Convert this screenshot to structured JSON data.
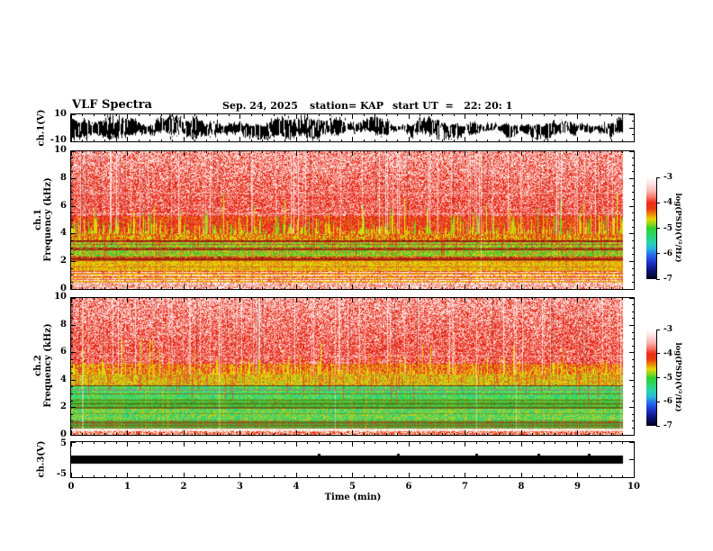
{
  "header": {
    "title": "VLF Spectra",
    "date": "Sep. 24, 2025",
    "station": "station= KAP",
    "start_ut": "start UT  =   22: 20: 1"
  },
  "x_axis": {
    "label": "Time (min)",
    "min": 0,
    "max": 10,
    "ticks": [
      "0",
      "1",
      "2",
      "3",
      "4",
      "5",
      "6",
      "7",
      "8",
      "9",
      "10"
    ],
    "minor_step_min": 0.2
  },
  "panels": {
    "wave": {
      "ylabel": "ch.1(V)",
      "ytick_labels": [
        "10",
        "-10"
      ],
      "ylim": [
        -10,
        10
      ]
    },
    "spec1": {
      "ylabel_line1": "ch.1",
      "ylabel_line2": "Frequency (kHz)",
      "yticks": [
        "10",
        "8",
        "6",
        "4",
        "2",
        "0"
      ],
      "ylim": [
        0,
        10
      ]
    },
    "spec2": {
      "ylabel_line1": "ch.2",
      "ylabel_line2": "Frequency (kHz)",
      "yticks": [
        "10",
        "8",
        "6",
        "4",
        "2",
        "0"
      ],
      "ylim": [
        0,
        10
      ]
    },
    "ch3": {
      "ylabel": "ch.3(V)",
      "ytick_labels": [
        "5",
        "-5"
      ],
      "ylim": [
        -5,
        5
      ]
    }
  },
  "colorbars": [
    {
      "label": "log(PSD)(V²/Hz)",
      "ticks": [
        "-3",
        "-4",
        "-5",
        "-6",
        "-7"
      ],
      "max": -3,
      "min": -7
    },
    {
      "label": "log(PSD)(V²/Hz)",
      "ticks": [
        "-3",
        "-4",
        "-5",
        "-6",
        "-7"
      ],
      "max": -3,
      "min": -7
    }
  ],
  "colors": {
    "frame": "#000000",
    "background": "#ffffff",
    "trace": "#000000",
    "colorbar_gradient": [
      [
        "0%",
        "#ffffff"
      ],
      [
        "7%",
        "#fddede"
      ],
      [
        "14%",
        "#fbb2ac"
      ],
      [
        "20%",
        "#f57262"
      ],
      [
        "25%",
        "#ef2b16"
      ],
      [
        "31%",
        "#e83c12"
      ],
      [
        "36%",
        "#ee8406"
      ],
      [
        "41%",
        "#e8d606"
      ],
      [
        "46%",
        "#8ed41c"
      ],
      [
        "50%",
        "#2ed22e"
      ],
      [
        "57%",
        "#2cd46a"
      ],
      [
        "64%",
        "#28d2ae"
      ],
      [
        "70%",
        "#2ab4dc"
      ],
      [
        "77%",
        "#2664ee"
      ],
      [
        "84%",
        "#1c30c4"
      ],
      [
        "92%",
        "#0a1270"
      ],
      [
        "100%",
        "#02021a"
      ]
    ]
  },
  "chart_data": [
    {
      "id": "ch1_waveform",
      "type": "line",
      "panel": "wave",
      "title": "ch.1 raw signal",
      "ylabel": "ch.1(V)",
      "ylim": [
        -10,
        10
      ],
      "xlim": [
        0,
        10
      ],
      "description": "Dense clipped broadband noise filling most of the ±10 V range continuously from 0 to ~9.8 min",
      "render": {
        "seed": 303,
        "data_fraction": 0.981,
        "hole_density": 0.9
      }
    },
    {
      "id": "ch1_spectrogram",
      "type": "heatmap",
      "panel": "spec1",
      "title": "ch.1 spectrogram",
      "ylabel": "Frequency (kHz)",
      "ylim": [
        0,
        10
      ],
      "xlim": [
        0,
        10
      ],
      "colorbar": {
        "label": "log(PSD)(V²/Hz)",
        "min": -7,
        "max": -3
      },
      "summary_bands": [
        {
          "f_khz": [
            5,
            10
          ],
          "psd": "-3.5 to -4, red/white speckle with impulsive vertical streaks"
        },
        {
          "f_khz": [
            4,
            5
          ],
          "psd": "-4, red with dense yellow-green sferic spikes rising from 4 kHz"
        },
        {
          "f_khz": [
            3.45,
            4
          ],
          "psd": "-4.5, yellow-orange band; dark red line at 3.5 kHz"
        },
        {
          "f_khz": [
            2.95,
            3.45
          ],
          "psd": "-5, green band crossed by red vertical streaks"
        },
        {
          "f_khz": [
            2.1,
            2.95
          ],
          "psd": "green/yellow mix; strong dark-red band near 2.2 kHz"
        },
        {
          "f_khz": [
            1.3,
            2.1
          ],
          "psd": "-4.5, yellow noisy band"
        },
        {
          "f_khz": [
            0.35,
            1.3
          ],
          "psd": "horizontal striped narrowband lines, white/red/yellow"
        },
        {
          "f_khz": [
            0,
            0.35
          ],
          "psd": "-3.5, light red"
        }
      ],
      "render": {
        "seed": 101,
        "fmax": 10,
        "data_fraction": 0.981,
        "topwhite_from": 6.5,
        "topwhite_amt": 0.5,
        "streak_zone": [
          4.0,
          10
        ],
        "streak_light_p": 0.1,
        "streak_dark_p": 0.05,
        "tall_streak_p": 0.006,
        "low_tint_p": 0.14,
        "low_tint_color": "#e04818",
        "bands": [
          {
            "f": [
              5.3,
              10.01
            ],
            "colors": [
              "#e62615",
              "#e62615",
              "#ee5142",
              "#f7948a",
              "#fbd2ca"
            ],
            "topwhite": true
          },
          {
            "f": [
              4.0,
              5.3
            ],
            "colors": [
              "#e62615",
              "#e62615",
              "#e83a22",
              "#ee5142",
              "#e8a00a"
            ]
          },
          {
            "f": [
              3.55,
              4.0
            ],
            "colors": [
              "#edc504",
              "#e8e00a",
              "#e65a20",
              "#a8d816",
              "#e62615"
            ]
          },
          {
            "f": [
              3.42,
              3.55
            ],
            "colors": [
              "#8f1d08",
              "#b03012",
              "#d44224"
            ]
          },
          {
            "f": [
              2.98,
              3.42
            ],
            "colors": [
              "#2fd02f",
              "#53de4a",
              "#bfe42c",
              "#e8d40e",
              "#e66a28"
            ]
          },
          {
            "f": [
              2.84,
              2.98
            ],
            "colors": [
              "#9c2410",
              "#c23818",
              "#7a9418"
            ]
          },
          {
            "f": [
              2.38,
              2.84
            ],
            "colors": [
              "#3ad03a",
              "#9ed826",
              "#e0d412",
              "#e67a24",
              "#2fd02f"
            ]
          },
          {
            "f": [
              2.08,
              2.38
            ],
            "colors": [
              "#d32410",
              "#9c1808",
              "#ee5038",
              "#c8b40a"
            ]
          },
          {
            "f": [
              1.28,
              2.08
            ],
            "colors": [
              "#ecd400",
              "#efac04",
              "#e66028",
              "#bcd81e",
              "#ecd400"
            ]
          },
          {
            "f": [
              0.38,
              1.28
            ],
            "colors": [
              "#e85040",
              "#f0d800"
            ],
            "hstripes": [
              "#ffffff",
              "#e85040",
              "#f0d800",
              "#f8b8a8",
              "#ffffff",
              "#e02818",
              "#ecd000",
              "#fae8e0",
              "#e85040",
              "#ffffff",
              "#e8c000",
              "#f09078",
              "#ffffff",
              "#d83020"
            ]
          },
          {
            "f": [
              -0.01,
              0.38
            ],
            "colors": [
              "#e85a40",
              "#f79a8a",
              "#ffffff",
              "#f2cfc6"
            ]
          }
        ],
        "spikes": {
          "base_f": 4.0,
          "up_p": 0.55,
          "up_mean": 0.55,
          "up_max": 3.0,
          "up_colors": [
            "#e8e00a",
            "#cede10",
            "#7fd01e",
            "#e8c004"
          ],
          "tip_color": "#58c818",
          "down_p": 0.28,
          "down_mean": 0.5,
          "down_max": 1.8,
          "down_color": "#e03418"
        },
        "hlines": [
          {
            "f": 7.0,
            "c": "#fbc6be",
            "a": 0.55
          },
          {
            "f": 5.5,
            "c": "#fbc6be",
            "a": 0.6
          },
          {
            "f": 3.5,
            "c": "#7a1505",
            "a": 0.85
          },
          {
            "f": 3.3,
            "c": "#9c2410",
            "a": 0.5
          },
          {
            "f": 2.9,
            "c": "#8c1d08",
            "a": 0.8
          },
          {
            "f": 2.22,
            "c": "#8c1808",
            "a": 0.8,
            "t": 2
          },
          {
            "f": 2.1,
            "c": "#a82a10",
            "a": 0.6
          },
          {
            "f": 1.62,
            "c": "#b03012",
            "a": 0.4
          }
        ]
      }
    },
    {
      "id": "ch2_spectrogram",
      "type": "heatmap",
      "panel": "spec2",
      "title": "ch.2 spectrogram",
      "ylabel": "Frequency (kHz)",
      "ylim": [
        0,
        10
      ],
      "xlim": [
        0,
        10
      ],
      "colorbar": {
        "label": "log(PSD)(V²/Hz)",
        "min": -7,
        "max": -3
      },
      "summary_bands": [
        {
          "f_khz": [
            5.2,
            10
          ],
          "psd": "-3.5 to -4, red/white speckle with vertical streaks"
        },
        {
          "f_khz": [
            4.4,
            5.2
          ],
          "psd": "-4, red with dense yellow sferic spikes"
        },
        {
          "f_khz": [
            3.6,
            4.4
          ],
          "psd": "-4.7, yellow-green transition band"
        },
        {
          "f_khz": [
            2.6,
            3.6
          ],
          "psd": "-5 to -5.5, green/teal band with dark horizontal lines"
        },
        {
          "f_khz": [
            1.95,
            2.6
          ],
          "psd": "green with dark olive lines near 2.0-2.3 kHz"
        },
        {
          "f_khz": [
            1.05,
            1.95
          ],
          "psd": "-5.3, green/cyan with yellow vertical streaks"
        },
        {
          "f_khz": [
            0.45,
            1.05
          ],
          "psd": "darker olive-green with red lines"
        },
        {
          "f_khz": [
            0,
            0.45
          ],
          "psd": "thin white line then orange/red speckle at bottom"
        }
      ],
      "render": {
        "seed": 202,
        "fmax": 10,
        "data_fraction": 0.981,
        "topwhite_from": 6.5,
        "topwhite_amt": 0.5,
        "streak_zone": [
          4.4,
          10
        ],
        "streak_light_p": 0.1,
        "streak_dark_p": 0.05,
        "tall_streak_p": 0.005,
        "low_tint_p": 0.12,
        "low_tint_color": "#e0c80a",
        "bands": [
          {
            "f": [
              5.2,
              10.01
            ],
            "colors": [
              "#e62615",
              "#e62615",
              "#ee5142",
              "#f7948a",
              "#fbd2ca"
            ],
            "topwhite": true
          },
          {
            "f": [
              4.4,
              5.2
            ],
            "colors": [
              "#e62615",
              "#e84428",
              "#ee5142",
              "#e8a00a",
              "#e0cc0a"
            ]
          },
          {
            "f": [
              3.6,
              4.4
            ],
            "colors": [
              "#cede1c",
              "#e8d80a",
              "#7ed22a",
              "#efa404",
              "#e65a20"
            ]
          },
          {
            "f": [
              2.6,
              3.6
            ],
            "colors": [
              "#2ed24e",
              "#28d896",
              "#44e050",
              "#b4e022",
              "#32c8c0",
              "#2ed24e"
            ]
          },
          {
            "f": [
              1.95,
              2.6
            ],
            "colors": [
              "#30c840",
              "#569018",
              "#3ad054",
              "#8aa61c",
              "#2ed24e"
            ]
          },
          {
            "f": [
              1.05,
              1.95
            ],
            "colors": [
              "#34d060",
              "#28d0a0",
              "#96dc26",
              "#e2cc10",
              "#34d060"
            ]
          },
          {
            "f": [
              0.45,
              1.05
            ],
            "colors": [
              "#46aa3a",
              "#7e7e1c",
              "#c05828",
              "#38b848",
              "#46aa3a"
            ]
          },
          {
            "f": [
              0.26,
              0.45
            ],
            "colors": [
              "#f8f2ec",
              "#fce4da",
              "#eec8b8",
              "#ffffff"
            ]
          },
          {
            "f": [
              -0.01,
              0.26
            ],
            "colors": [
              "#e8672e",
              "#f5a585",
              "#ffffff",
              "#e62615"
            ]
          }
        ],
        "spikes": {
          "base_f": 4.4,
          "up_p": 0.6,
          "up_mean": 0.5,
          "up_max": 2.6,
          "up_colors": [
            "#e8d80a",
            "#efa404",
            "#cede10"
          ],
          "tip_color": "#e8d80a",
          "down_p": 0.32,
          "down_mean": 0.6,
          "down_max": 2.2,
          "down_color": "#e65020"
        },
        "hlines": [
          {
            "f": 5.8,
            "c": "#fbc6be",
            "a": 0.45
          },
          {
            "f": 3.62,
            "c": "#7a1505",
            "a": 0.8
          },
          {
            "f": 3.35,
            "c": "#8c9468",
            "a": 0.7,
            "t": 2
          },
          {
            "f": 3.02,
            "c": "#8c5a10",
            "a": 0.75
          },
          {
            "f": 2.55,
            "c": "#6a7a14",
            "a": 0.7
          },
          {
            "f": 2.3,
            "c": "#5a3808",
            "a": 0.7
          },
          {
            "f": 2.05,
            "c": "#6a4410",
            "a": 0.7,
            "t": 2
          },
          {
            "f": 1.6,
            "c": "#6a7a14",
            "a": 0.5
          },
          {
            "f": 0.95,
            "c": "#8c2808",
            "a": 0.7
          },
          {
            "f": 0.72,
            "c": "#6a5a10",
            "a": 0.6
          }
        ]
      }
    },
    {
      "id": "ch3_waveform",
      "type": "line",
      "panel": "ch3",
      "title": "ch.3 raw signal",
      "ylabel": "ch.3(V)",
      "ylim": [
        -5,
        5
      ],
      "xlim": [
        0,
        10
      ],
      "description": "Saturated flat trace: solid black bar from about -1.2 V to +1.2 V spanning 0 to ~9.8 min",
      "render": {
        "seed": 404,
        "data_fraction": 0.981,
        "bar_top": 1.2,
        "bar_bottom": -1.2,
        "notches": [
          4.4,
          5.8,
          7.2,
          8.3,
          9.2
        ]
      }
    }
  ]
}
